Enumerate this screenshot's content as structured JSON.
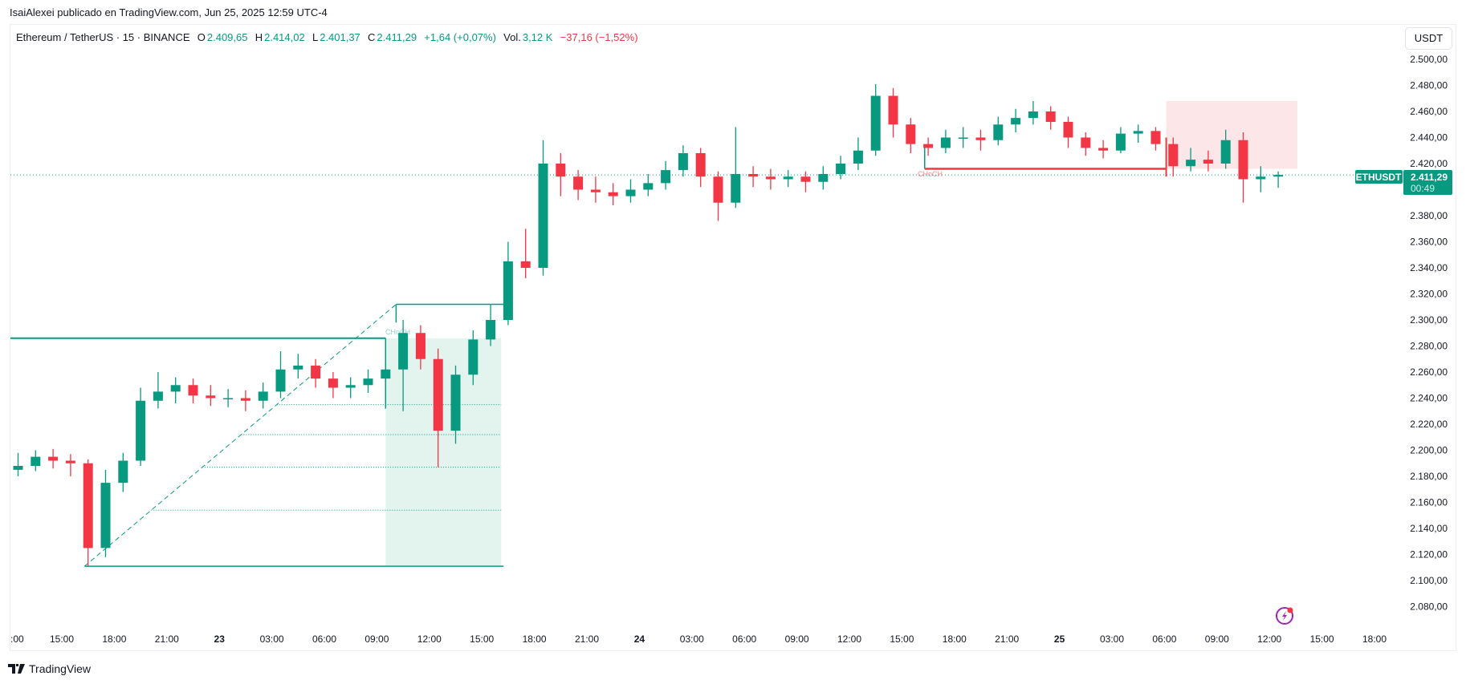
{
  "header": {
    "published": "IsaiAlexei publicado en TradingView.com, Jun 25, 2025 12:59 UTC-4"
  },
  "legend": {
    "symbol": "Ethereum / TetherUS · 15 · BINANCE",
    "o_label": "O",
    "o": "2.409,65",
    "h_label": "H",
    "h": "2.414,02",
    "l_label": "L",
    "l": "2.401,37",
    "c_label": "C",
    "c": "2.411,29",
    "change": "+1,64 (+0,07%)",
    "vol_label": "Vol.",
    "vol": "3,12 K",
    "vol_change": "−37,16 (−1,52%)"
  },
  "currency": "USDT",
  "price_badge": {
    "symbol": "ETHUSDT",
    "price": "2.411,29",
    "countdown": "00:49"
  },
  "footer": {
    "brand": "TradingView"
  },
  "colors": {
    "up": "#089981",
    "down": "#f23645",
    "long_zone": "#e3f4ef",
    "short_zone": "#fde6e8",
    "grid_text": "#131722",
    "alert": "#9c27b0"
  },
  "annotations": {
    "choch_1": "CHoCH",
    "choch_2": "CHoCH"
  },
  "icons": {
    "alert": "lightning-alert-icon",
    "logo": "tradingview-logo-icon"
  },
  "chart_data": {
    "type": "candlestick",
    "symbol": "ETHUSDT",
    "interval": "15",
    "ylim": [
      2070,
      2510
    ],
    "price_ticks": [
      "2.500,00",
      "2.480,00",
      "2.460,00",
      "2.440,00",
      "2.420,00",
      "2.380,00",
      "2.360,00",
      "2.340,00",
      "2.320,00",
      "2.300,00",
      "2.280,00",
      "2.260,00",
      "2.240,00",
      "2.220,00",
      "2.200,00",
      "2.180,00",
      "2.160,00",
      "2.140,00",
      "2.120,00",
      "2.100,00",
      "2.080,00"
    ],
    "price_tick_values": [
      2500,
      2480,
      2460,
      2440,
      2420,
      2380,
      2360,
      2340,
      2320,
      2300,
      2280,
      2260,
      2240,
      2220,
      2200,
      2180,
      2160,
      2140,
      2120,
      2100,
      2080
    ],
    "time_ticks": [
      ":00",
      "15:00",
      "18:00",
      "21:00",
      "23",
      "03:00",
      "06:00",
      "09:00",
      "12:00",
      "15:00",
      "18:00",
      "21:00",
      "24",
      "03:00",
      "06:00",
      "09:00",
      "12:00",
      "15:00",
      "18:00",
      "21:00",
      "25",
      "03:00",
      "06:00",
      "09:00",
      "12:00",
      "15:00",
      "18:00"
    ],
    "time_tick_hours": [
      12,
      15,
      18,
      21,
      24,
      27,
      30,
      33,
      36,
      39,
      42,
      45,
      48,
      51,
      54,
      57,
      60,
      63,
      66,
      69,
      72,
      75,
      78,
      81,
      84,
      87,
      90
    ],
    "candle_start_hour": 12,
    "ohlc": [
      [
        2185,
        2198,
        2180,
        2188
      ],
      [
        2188,
        2200,
        2184,
        2195
      ],
      [
        2195,
        2201,
        2186,
        2192
      ],
      [
        2192,
        2197,
        2180,
        2190
      ],
      [
        2190,
        2193,
        2111,
        2125
      ],
      [
        2125,
        2185,
        2118,
        2175
      ],
      [
        2175,
        2198,
        2168,
        2192
      ],
      [
        2192,
        2248,
        2188,
        2238
      ],
      [
        2238,
        2260,
        2232,
        2245
      ],
      [
        2245,
        2256,
        2236,
        2250
      ],
      [
        2250,
        2255,
        2236,
        2242
      ],
      [
        2242,
        2250,
        2234,
        2240
      ],
      [
        2240,
        2247,
        2233,
        2240
      ],
      [
        2240,
        2246,
        2230,
        2238
      ],
      [
        2238,
        2252,
        2232,
        2245
      ],
      [
        2245,
        2276,
        2240,
        2262
      ],
      [
        2262,
        2274,
        2255,
        2265
      ],
      [
        2265,
        2270,
        2248,
        2255
      ],
      [
        2255,
        2260,
        2240,
        2248
      ],
      [
        2248,
        2256,
        2240,
        2250
      ],
      [
        2250,
        2262,
        2244,
        2255
      ],
      [
        2255,
        2268,
        2246,
        2262
      ],
      [
        2262,
        2300,
        2230,
        2290
      ],
      [
        2290,
        2296,
        2262,
        2270
      ],
      [
        2270,
        2278,
        2187,
        2215
      ],
      [
        2215,
        2265,
        2205,
        2258
      ],
      [
        2258,
        2292,
        2250,
        2285
      ],
      [
        2285,
        2312,
        2280,
        2300
      ],
      [
        2300,
        2360,
        2296,
        2345
      ],
      [
        2345,
        2370,
        2332,
        2340
      ],
      [
        2340,
        2438,
        2334,
        2420
      ],
      [
        2420,
        2428,
        2395,
        2410
      ],
      [
        2410,
        2415,
        2392,
        2400
      ],
      [
        2400,
        2410,
        2390,
        2398
      ],
      [
        2398,
        2405,
        2388,
        2395
      ],
      [
        2395,
        2408,
        2390,
        2400
      ],
      [
        2400,
        2412,
        2395,
        2405
      ],
      [
        2405,
        2422,
        2400,
        2415
      ],
      [
        2415,
        2434,
        2410,
        2428
      ],
      [
        2428,
        2432,
        2402,
        2410
      ],
      [
        2410,
        2414,
        2376,
        2390
      ],
      [
        2390,
        2448,
        2386,
        2412
      ],
      [
        2412,
        2418,
        2402,
        2410
      ],
      [
        2410,
        2416,
        2400,
        2408
      ],
      [
        2408,
        2415,
        2402,
        2410
      ],
      [
        2410,
        2414,
        2398,
        2406
      ],
      [
        2406,
        2418,
        2400,
        2412
      ],
      [
        2412,
        2426,
        2408,
        2420
      ],
      [
        2420,
        2440,
        2415,
        2430
      ],
      [
        2430,
        2481,
        2426,
        2472
      ],
      [
        2472,
        2478,
        2440,
        2450
      ],
      [
        2450,
        2455,
        2428,
        2435
      ],
      [
        2435,
        2440,
        2426,
        2432
      ],
      [
        2432,
        2446,
        2428,
        2440
      ],
      [
        2440,
        2448,
        2432,
        2440
      ],
      [
        2440,
        2446,
        2430,
        2438
      ],
      [
        2438,
        2456,
        2434,
        2450
      ],
      [
        2450,
        2462,
        2444,
        2455
      ],
      [
        2455,
        2468,
        2450,
        2460
      ],
      [
        2460,
        2464,
        2446,
        2452
      ],
      [
        2452,
        2456,
        2432,
        2440
      ],
      [
        2440,
        2444,
        2426,
        2432
      ],
      [
        2432,
        2438,
        2424,
        2430
      ],
      [
        2430,
        2448,
        2428,
        2443
      ],
      [
        2443,
        2450,
        2436,
        2445
      ],
      [
        2445,
        2448,
        2430,
        2435
      ],
      [
        2435,
        2440,
        2410,
        2418
      ],
      [
        2418,
        2432,
        2414,
        2423
      ],
      [
        2423,
        2430,
        2414,
        2420
      ],
      [
        2420,
        2446,
        2416,
        2438
      ],
      [
        2438,
        2444,
        2390,
        2408
      ],
      [
        2408,
        2418,
        2398,
        2410
      ],
      [
        2410,
        2414.02,
        2401.37,
        2411.29
      ]
    ],
    "last_price": 2411.29,
    "drawings": {
      "long_position": {
        "entry": 2286,
        "stop": 2111,
        "target_line": 2312,
        "start_hour": 33.5,
        "end_hour": 40.1
      },
      "fib_levels": [
        2235,
        2212,
        2187,
        2154
      ],
      "trend_line": {
        "from": {
          "hour": 16.3,
          "price": 2111
        },
        "to": {
          "hour": 34.1,
          "price": 2312
        }
      },
      "support_line": {
        "price": 2286,
        "from_hour": 12,
        "to_hour": 33.5
      },
      "choch_line": {
        "price": 2416,
        "from_hour": 64.3,
        "to_hour": 78.1
      },
      "short_zone": {
        "top": 2468,
        "bottom": 2416,
        "start_hour": 78.1,
        "end_hour": 85.6
      }
    }
  }
}
